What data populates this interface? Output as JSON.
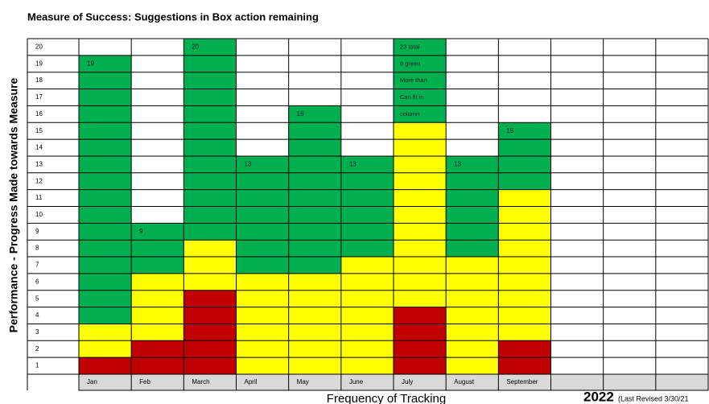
{
  "chart_data": {
    "type": "stacked_bar",
    "title": "Measure of Success: Suggestions in Box action remaining",
    "y_label": "Performance - Progress Made towards Measure",
    "x_label": "Frequency of Tracking",
    "year": "2022",
    "note": "(Last Revised 3/30/21",
    "categories": [
      "Jan",
      "Feb",
      "March",
      "April",
      "May",
      "June",
      "July",
      "August",
      "September",
      null,
      null,
      null
    ],
    "series": [
      {
        "name": "Red",
        "color": "#c00000",
        "values": [
          1,
          2,
          5,
          0,
          0,
          0,
          4,
          0,
          2,
          null,
          null,
          null
        ]
      },
      {
        "name": "Yellow",
        "color": "#ffff00",
        "values": [
          2,
          4,
          3,
          6,
          6,
          7,
          11,
          7,
          9,
          null,
          null,
          null
        ]
      },
      {
        "name": "Green",
        "color": "#00b050",
        "values": [
          16,
          3,
          12,
          7,
          10,
          6,
          5,
          6,
          4,
          null,
          null,
          null
        ]
      }
    ],
    "bar_labels": [
      "19",
      "9",
      "20",
      "13",
      "16",
      "13",
      null,
      "13",
      "15",
      null,
      null,
      null
    ],
    "annotation_lines": [
      "23 total",
      "8 green",
      "More than",
      "Can fit in",
      "column"
    ],
    "ylim": [
      0,
      20
    ],
    "yticks": [
      1,
      2,
      3,
      4,
      5,
      6,
      7,
      8,
      9,
      10,
      11,
      12,
      13,
      14,
      15,
      16,
      17,
      18,
      19,
      20
    ],
    "grid": true
  }
}
